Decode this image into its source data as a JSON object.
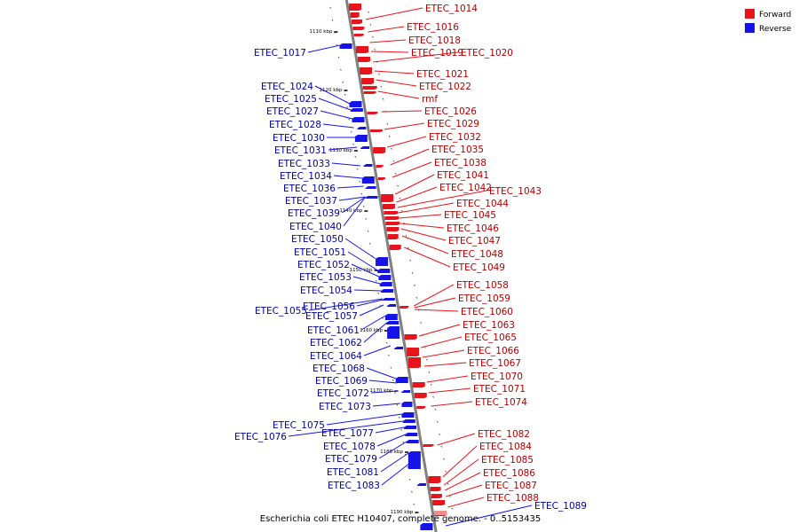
{
  "caption": "Escherichia coli ETEC H10407, complete genome. - 0..5153435",
  "legend": [
    {
      "label": "Forward",
      "color": "#e8141b"
    },
    {
      "label": "Reverse",
      "color": "#1414e8"
    }
  ],
  "colors": {
    "forward": "#e8141b",
    "reverse": "#1414e8",
    "forward_label": "#b00000",
    "reverse_label": "#000099",
    "axis": "#808080",
    "pale_forward": "#f08c8c"
  },
  "kbp_ticks": [
    "1110 kbp",
    "1120 kbp",
    "1130 kbp",
    "1140 kbp",
    "1150 kbp",
    "1160 kbp",
    "1170 kbp",
    "1180 kbp",
    "1190 kbp"
  ],
  "forward_genes": [
    "ETEC_1014",
    "ETEC_1016",
    "ETEC_1018",
    "ETEC_1019",
    "ETEC_1020",
    "ETEC_1021",
    "ETEC_1022",
    "rmf",
    "ETEC_1026",
    "ETEC_1029",
    "ETEC_1032",
    "ETEC_1035",
    "ETEC_1038",
    "ETEC_1041",
    "ETEC_1042",
    "ETEC_1043",
    "ETEC_1044",
    "ETEC_1045",
    "ETEC_1046",
    "ETEC_1047",
    "ETEC_1048",
    "ETEC_1049",
    "ETEC_1058",
    "ETEC_1059",
    "ETEC_1060",
    "ETEC_1063",
    "ETEC_1065",
    "ETEC_1066",
    "ETEC_1067",
    "ETEC_1070",
    "ETEC_1071",
    "ETEC_1074",
    "ETEC_1082",
    "ETEC_1084",
    "ETEC_1085",
    "ETEC_1086",
    "ETEC_1087",
    "ETEC_1088"
  ],
  "reverse_genes": [
    "ETEC_1017",
    "ETEC_1024",
    "ETEC_1025",
    "ETEC_1027",
    "ETEC_1028",
    "ETEC_1030",
    "ETEC_1031",
    "ETEC_1033",
    "ETEC_1034",
    "ETEC_1036",
    "ETEC_1037",
    "ETEC_1039",
    "ETEC_1040",
    "ETEC_1050",
    "ETEC_1051",
    "ETEC_1052",
    "ETEC_1053",
    "ETEC_1054",
    "ETEC_1055",
    "ETEC_1056",
    "ETEC_1057",
    "ETEC_1061",
    "ETEC_1062",
    "ETEC_1064",
    "ETEC_1068",
    "ETEC_1069",
    "ETEC_1072",
    "ETEC_1073",
    "ETEC_1075",
    "ETEC_1076",
    "ETEC_1077",
    "ETEC_1078",
    "ETEC_1079",
    "ETEC_1081",
    "ETEC_1083",
    "ETEC_1089"
  ]
}
